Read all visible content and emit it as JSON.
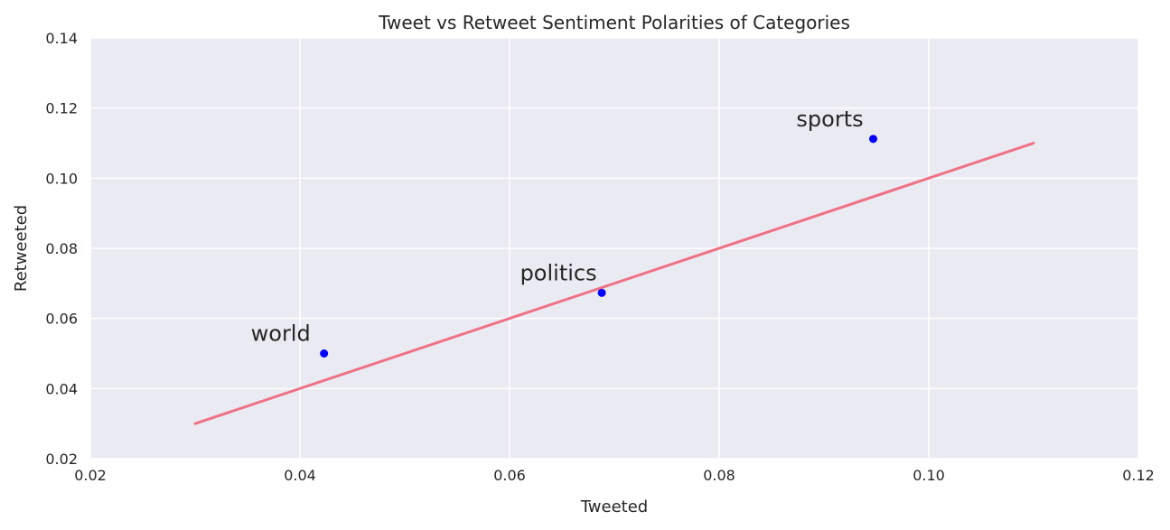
{
  "chart_data": {
    "type": "scatter",
    "title": "Tweet vs Retweet Sentiment Polarities of Categories",
    "xlabel": "Tweeted",
    "ylabel": "Retweeted",
    "xlim": [
      0.02,
      0.12
    ],
    "ylim": [
      0.02,
      0.14
    ],
    "xticks": [
      "0.02",
      "0.04",
      "0.06",
      "0.08",
      "0.10",
      "0.12"
    ],
    "yticks": [
      "0.02",
      "0.04",
      "0.06",
      "0.08",
      "0.10",
      "0.12",
      "0.14"
    ],
    "grid": true,
    "points": [
      {
        "label": "world",
        "x": 0.0423,
        "y": 0.05
      },
      {
        "label": "politics",
        "x": 0.0688,
        "y": 0.0673
      },
      {
        "label": "sports",
        "x": 0.0947,
        "y": 0.1112
      }
    ],
    "reference_line": {
      "x": [
        0.03,
        0.11
      ],
      "y": [
        0.03,
        0.11
      ]
    },
    "colors": {
      "background": "#eaeaf2",
      "grid": "#ffffff",
      "points": "#0000ff",
      "line": "#f07185"
    }
  }
}
